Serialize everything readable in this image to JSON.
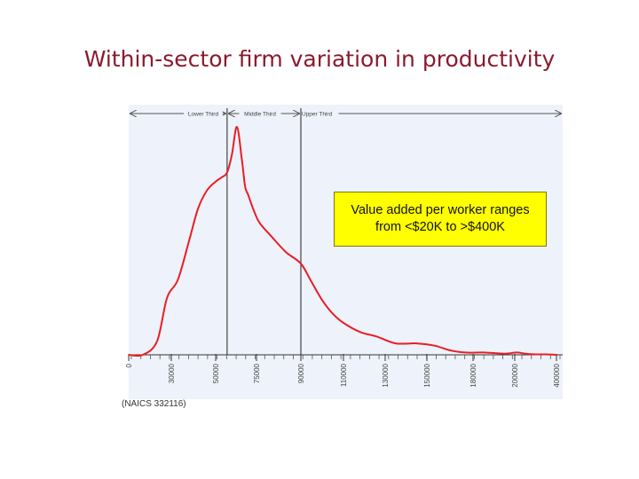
{
  "slide": {
    "title": "Within-sector firm variation in productivity"
  },
  "colors": {
    "title": "#8b1a2e",
    "plot_background": "#eef2fa",
    "curve": "#e81e25",
    "callout_background": "#ffff00"
  },
  "callout": {
    "line1": "Value added per worker ranges",
    "line2": "from <$20K to >$400K"
  },
  "chart_data": {
    "type": "line",
    "title": "",
    "xlabel": "",
    "ylabel": "",
    "note": "(NAICS 332116)",
    "x_scale": "categorical",
    "x_tick_labels": [
      "0",
      "30000",
      "50000",
      "75000",
      "90000",
      "110000",
      "130000",
      "150000",
      "180000",
      "200000",
      "400000"
    ],
    "y_axis_shown": false,
    "grid": false,
    "legend": "none",
    "bands": [
      {
        "label": "Lower Third"
      },
      {
        "label": "Middle Third"
      },
      {
        "label": "Upper Third"
      }
    ],
    "divider_positions": [
      57000,
      90000
    ],
    "series": [
      {
        "x": [
          0,
          10000,
          20000,
          27000,
          33000,
          38000,
          42000,
          46000,
          50000,
          54000,
          57000,
          60000,
          63000,
          66000,
          68000,
          70000,
          73000,
          76000,
          80000,
          85000,
          90000,
          95000,
          100000,
          105000,
          110000,
          118000,
          126000,
          135000,
          145000,
          155000,
          165000,
          175000,
          185000,
          195000,
          210000,
          250000,
          300000,
          350000,
          400000
        ],
        "y": [
          0,
          0,
          0.06,
          0.25,
          0.33,
          0.5,
          0.64,
          0.72,
          0.76,
          0.78,
          0.8,
          0.88,
          1.0,
          0.86,
          0.74,
          0.7,
          0.64,
          0.58,
          0.52,
          0.45,
          0.4,
          0.32,
          0.24,
          0.18,
          0.14,
          0.1,
          0.08,
          0.05,
          0.05,
          0.04,
          0.02,
          0.01,
          0.01,
          0.005,
          0.01,
          0.005,
          0.002,
          0.002,
          0.0
        ]
      }
    ]
  }
}
